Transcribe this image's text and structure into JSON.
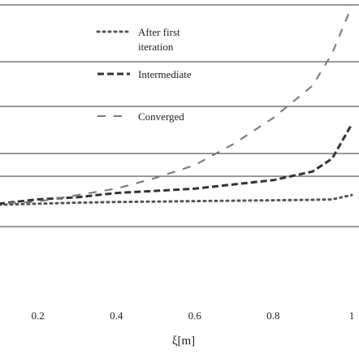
{
  "chart_data": {
    "type": "line",
    "xlabel": "ξ[m]",
    "x_ticks": [
      "0.2",
      "0.4",
      "0.6",
      "0.8",
      "1"
    ],
    "xlim": [
      0.0,
      1.0
    ],
    "ylim": [
      0.0,
      1.0
    ],
    "grid": true,
    "legend_position": "top-left",
    "x": [
      0.0,
      0.1,
      0.2,
      0.3,
      0.4,
      0.5,
      0.6,
      0.7,
      0.8,
      0.9,
      0.95,
      1.0
    ],
    "series": [
      {
        "name": "After first iteration",
        "style": "dotted",
        "color": "#555555",
        "values": [
          0.04,
          0.045,
          0.05,
          0.055,
          0.058,
          0.06,
          0.062,
          0.064,
          0.066,
          0.068,
          0.07,
          0.09
        ]
      },
      {
        "name": "Intermediate",
        "style": "dashed",
        "color": "#333333",
        "values": [
          0.04,
          0.05,
          0.07,
          0.08,
          0.1,
          0.11,
          0.12,
          0.14,
          0.16,
          0.2,
          0.26,
          0.42
        ]
      },
      {
        "name": "Converged",
        "style": "long-dashed",
        "color": "#777777",
        "values": [
          0.04,
          0.05,
          0.06,
          0.09,
          0.12,
          0.17,
          0.23,
          0.33,
          0.45,
          0.6,
          0.75,
          0.97
        ]
      }
    ],
    "legend_entries": [
      {
        "line1": "After first",
        "line2": "iteration"
      },
      {
        "line1": "Intermediate",
        "line2": ""
      },
      {
        "line1": "Converged",
        "line2": ""
      }
    ]
  }
}
